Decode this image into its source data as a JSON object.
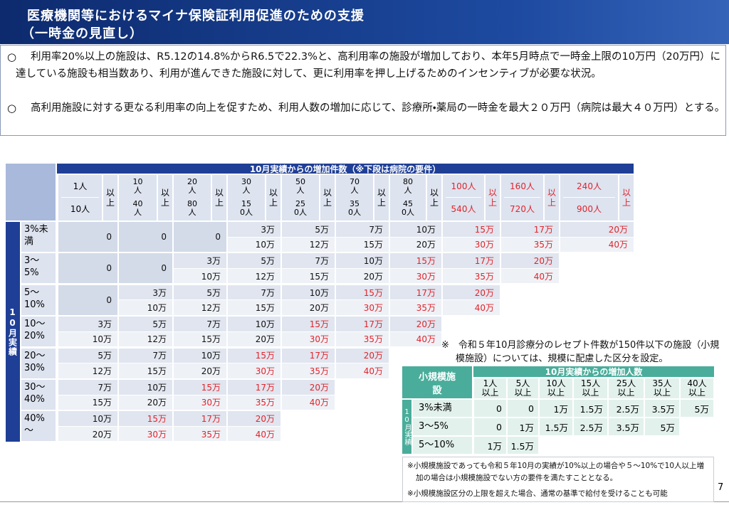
{
  "header": {
    "title": "医療機関等におけるマイナ保険証利用促進のための支援",
    "subtitle": "（一時金の見直し）"
  },
  "bullets": [
    "利用率20%以上の施設は、R5.12の14.8%からR6.5で22.3%と、高利用率の施設が増加しており、本年5月時点で一時金上限の10万円（20万円）に達している施設も相当数あり、利用が進んできた施設に対して、更に利用率を押し上げるためのインセンティブが必要な状況。",
    "高利用施設に対する更なる利用率の向上を促すため、利用人数の増加に応じて、診療所・薬局の一時金を最大２０万円（病院は最大４０万円）とする。"
  ],
  "main_table": {
    "header": "10月実績からの増加件数（※下段は病院の要件）",
    "row_axis": "10月実績",
    "suffix": "以上",
    "columns": [
      {
        "clinic": "1人",
        "hospital": "10人"
      },
      {
        "clinic": "10人",
        "hospital": "40人"
      },
      {
        "clinic": "20人",
        "hospital": "80人"
      },
      {
        "clinic": "30人",
        "hospital": "150人"
      },
      {
        "clinic": "50人",
        "hospital": "250人"
      },
      {
        "clinic": "70人",
        "hospital": "350人"
      },
      {
        "clinic": "80人",
        "hospital": "450人"
      },
      {
        "clinic": "100人",
        "hospital": "540人"
      },
      {
        "clinic": "160人",
        "hospital": "720人"
      },
      {
        "clinic": "240人",
        "hospital": "900人"
      }
    ],
    "rows": [
      {
        "label": "3%未満",
        "clinic": [
          "0",
          "0",
          "0",
          "3万",
          "5万",
          "7万",
          "10万",
          "15万",
          "17万",
          "20万"
        ],
        "hospital": [
          null,
          null,
          null,
          "10万",
          "12万",
          "15万",
          "20万",
          "30万",
          "35万",
          "40万"
        ]
      },
      {
        "label": "3～5%",
        "clinic": [
          "0",
          "0",
          "3万",
          "5万",
          "7万",
          "10万",
          "15万",
          "17万",
          "20万"
        ],
        "hospital": [
          null,
          null,
          "10万",
          "12万",
          "15万",
          "20万",
          "30万",
          "35万",
          "40万"
        ]
      },
      {
        "label": "5～10%",
        "clinic": [
          "0",
          "3万",
          "5万",
          "7万",
          "10万",
          "15万",
          "17万",
          "20万"
        ],
        "hospital": [
          null,
          "10万",
          "12万",
          "15万",
          "20万",
          "30万",
          "35万",
          "40万"
        ]
      },
      {
        "label": "10～20%",
        "clinic": [
          "3万",
          "5万",
          "7万",
          "10万",
          "15万",
          "17万",
          "20万"
        ],
        "hospital": [
          "10万",
          "12万",
          "15万",
          "20万",
          "30万",
          "35万",
          "40万"
        ]
      },
      {
        "label": "20～30%",
        "clinic": [
          "5万",
          "7万",
          "10万",
          "15万",
          "17万",
          "20万"
        ],
        "hospital": [
          "12万",
          "15万",
          "20万",
          "30万",
          "35万",
          "40万"
        ]
      },
      {
        "label": "30～40%",
        "clinic": [
          "7万",
          "10万",
          "15万",
          "17万",
          "20万"
        ],
        "hospital": [
          "15万",
          "20万",
          "30万",
          "35万",
          "40万"
        ]
      },
      {
        "label": "40%～",
        "clinic": [
          "10万",
          "15万",
          "17万",
          "20万"
        ],
        "hospital": [
          "20万",
          "30万",
          "35万",
          "40万"
        ]
      }
    ]
  },
  "small_table": {
    "note": "※　令和５年10月診療分のレセプト件数が150件以下の施設（小規模施設）については、規模に配慮した区分を設定。",
    "corner": "小規模施設",
    "header": "10月実績からの増加人数",
    "row_axis": "10月実績",
    "columns": [
      "1人以上",
      "5人以上",
      "10人以上",
      "15人以上",
      "25人以上",
      "35人以上",
      "40人以上"
    ],
    "rows": [
      {
        "label": "3%未満",
        "values": [
          "0",
          "0",
          "1万",
          "1.5万",
          "2.5万",
          "3.5万",
          "5万"
        ]
      },
      {
        "label": "3～5%",
        "values": [
          "0",
          "1万",
          "1.5万",
          "2.5万",
          "3.5万",
          "5万"
        ]
      },
      {
        "label": "5～10%",
        "values": [
          "1万",
          "1.5万"
        ]
      }
    ]
  },
  "footnotes": [
    "※小規模施設であっても令和５年10月の実績が10%以上の場合や５～10%で10人以上増加の場合は小規模施設でない方の要件を満たすこととなる。",
    "※小規模施設区分の上限を超えた場合、通常の基準で給付を受けることも可能"
  ],
  "page_number": "7"
}
